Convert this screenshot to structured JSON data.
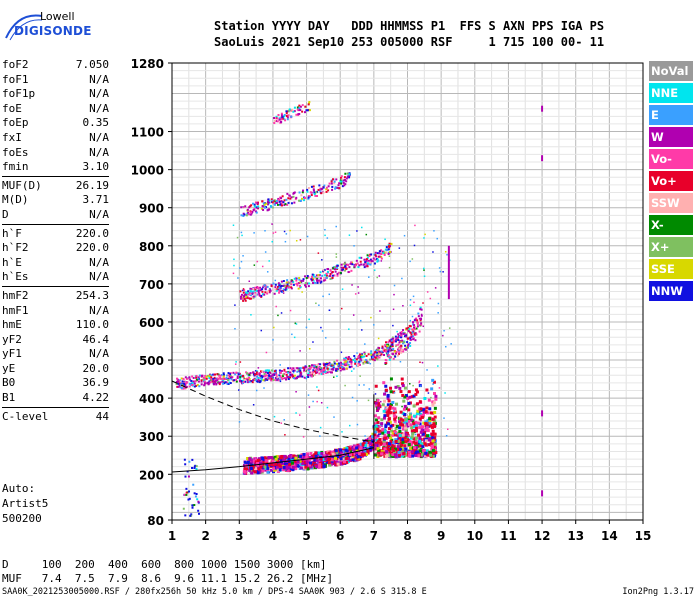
{
  "logo": {
    "line1": "Lowell",
    "line2": "DIGISONDE"
  },
  "header": {
    "line1": "Station YYYY DAY   DDD HHMMSS P1  FFS S AXN PPS IGA PS",
    "line2": "SaoLuis 2021 Sep10 253 005000 RSF     1 715 100 00- 11"
  },
  "params": [
    [
      {
        "k": "foF2",
        "v": "7.050"
      },
      {
        "k": "foF1",
        "v": "N/A"
      },
      {
        "k": "foF1p",
        "v": "N/A"
      },
      {
        "k": "foE",
        "v": "N/A"
      },
      {
        "k": "foEp",
        "v": "0.35"
      },
      {
        "k": "fxI",
        "v": "N/A"
      },
      {
        "k": "foEs",
        "v": "N/A"
      },
      {
        "k": "fmin",
        "v": "3.10"
      }
    ],
    [
      {
        "k": "MUF(D)",
        "v": "26.19"
      },
      {
        "k": "M(D)",
        "v": "3.71"
      },
      {
        "k": "D",
        "v": "N/A"
      }
    ],
    [
      {
        "k": "h`F",
        "v": "220.0"
      },
      {
        "k": "h`F2",
        "v": "220.0"
      },
      {
        "k": "h`E",
        "v": "N/A"
      },
      {
        "k": "h`Es",
        "v": "N/A"
      }
    ],
    [
      {
        "k": "hmF2",
        "v": "254.3"
      },
      {
        "k": "hmF1",
        "v": "N/A"
      },
      {
        "k": "hmE",
        "v": "110.0"
      },
      {
        "k": "yF2",
        "v": "46.4"
      },
      {
        "k": "yF1",
        "v": "N/A"
      },
      {
        "k": "yE",
        "v": "20.0"
      },
      {
        "k": "B0",
        "v": "36.9"
      },
      {
        "k": "B1",
        "v": "4.22"
      }
    ],
    [
      {
        "k": "C-level",
        "v": "44"
      }
    ]
  ],
  "auto": {
    "line1": "Auto:",
    "line2": "Artist5",
    "line3": "500200"
  },
  "legend": [
    {
      "label": "NoVal",
      "color": "#9a9a9a"
    },
    {
      "label": "NNE",
      "color": "#00e5ee"
    },
    {
      "label": "E",
      "color": "#3aa0ff"
    },
    {
      "label": "W",
      "color": "#b000b0"
    },
    {
      "label": "Vo-",
      "color": "#ff3aa8"
    },
    {
      "label": "Vo+",
      "color": "#e8002a"
    },
    {
      "label": "SSW",
      "color": "#ffb0b0"
    },
    {
      "label": "X-",
      "color": "#008a00"
    },
    {
      "label": "X+",
      "color": "#7fc060"
    },
    {
      "label": "SSE",
      "color": "#d8d800"
    },
    {
      "label": "NNW",
      "color": "#1010e0"
    }
  ],
  "bottom": {
    "d_row": "D     100  200  400  600  800 1000 1500 3000 [km]",
    "muf_row": "MUF   7.4  7.5  7.9  8.6  9.6 11.1 15.2 26.2 [MHz]"
  },
  "footer": "SAA0K_2021253005000.RSF / 280fx256h 50 kHz 5.0 km / DPS-4 SAA0K 903 / 2.6 S 315.8 E",
  "version": "Ion2Png 1.3.17",
  "chart_data": {
    "type": "scatter",
    "title": "",
    "xlabel": "",
    "ylabel": "",
    "xlim": [
      1,
      15
    ],
    "ylim": [
      80,
      1280
    ],
    "x_ticks": [
      1,
      2,
      3,
      4,
      5,
      6,
      7,
      8,
      9,
      10,
      11,
      12,
      13,
      14,
      15
    ],
    "y_ticks": [
      80,
      200,
      300,
      400,
      500,
      600,
      700,
      800,
      900,
      1000,
      1100,
      1280
    ],
    "grid": true,
    "traces": [
      {
        "name": "F2 trace",
        "color": "#e8002a",
        "x": [
          3.1,
          4,
          5,
          6,
          6.5,
          6.9,
          7.0
        ],
        "y": [
          226,
          230,
          238,
          250,
          262,
          285,
          330
        ]
      },
      {
        "name": "2F trace",
        "color": "#b000b0",
        "x": [
          1.1,
          2,
          3,
          4,
          5,
          6,
          6.8,
          7.4
        ],
        "y": [
          440,
          450,
          456,
          462,
          472,
          490,
          510,
          530
        ]
      },
      {
        "name": "3F trace",
        "color": "#b000b0",
        "x": [
          3,
          4,
          5,
          6,
          7,
          7.5
        ],
        "y": [
          670,
          690,
          710,
          740,
          770,
          800
        ]
      },
      {
        "name": "4F trace",
        "color": "#b000b0",
        "x": [
          3,
          4,
          5,
          6,
          6.3
        ],
        "y": [
          890,
          915,
          940,
          970,
          990
        ]
      },
      {
        "name": "5F trace",
        "color": "#b000b0",
        "x": [
          4,
          4.5,
          5.1
        ],
        "y": [
          1130,
          1150,
          1170
        ]
      },
      {
        "name": "upper trace",
        "color": "#1010e0",
        "x": [
          7.3,
          7.8,
          8.2,
          8.4
        ],
        "y": [
          520,
          550,
          580,
          620
        ]
      }
    ],
    "profile_solid": {
      "x": [
        1,
        2,
        3,
        4,
        5,
        6,
        7
      ],
      "y": [
        206,
        212,
        220,
        230,
        240,
        250,
        270
      ]
    },
    "profile_dashed": {
      "x": [
        1,
        2,
        3,
        4,
        5,
        6,
        7
      ],
      "y": [
        445,
        405,
        370,
        340,
        318,
        300,
        285
      ]
    },
    "axis_marks": [
      {
        "x": 7.0,
        "ymin": 240,
        "ymax": 410
      }
    ]
  }
}
